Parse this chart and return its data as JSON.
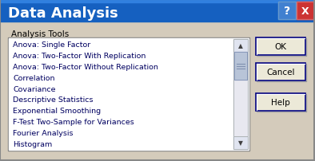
{
  "title": "Data Analysis",
  "title_color": "#FFFFFF",
  "title_bar_color": "#1560C0",
  "bg_color": "#D4CBBB",
  "dialog_bg": "#D4CBBB",
  "label_text": "Analysis Tools",
  "list_items": [
    "Anova: Single Factor",
    "Anova: Two-Factor With Replication",
    "Anova: Two-Factor Without Replication",
    "Correlation",
    "Covariance",
    "Descriptive Statistics",
    "Exponential Smoothing",
    "F-Test Two-Sample for Variances",
    "Fourier Analysis",
    "Histogram"
  ],
  "buttons": [
    "OK",
    "Cancel",
    "Help"
  ],
  "list_bg": "#FFFFFF",
  "list_border": "#7F9DB9",
  "button_bg": "#ECE9D8",
  "button_border": "#003399",
  "scrollbar_color": "#B8C4D8",
  "title_font_size": 13,
  "label_font_size": 7.5,
  "list_font_size": 6.8,
  "button_font_size": 7.5
}
